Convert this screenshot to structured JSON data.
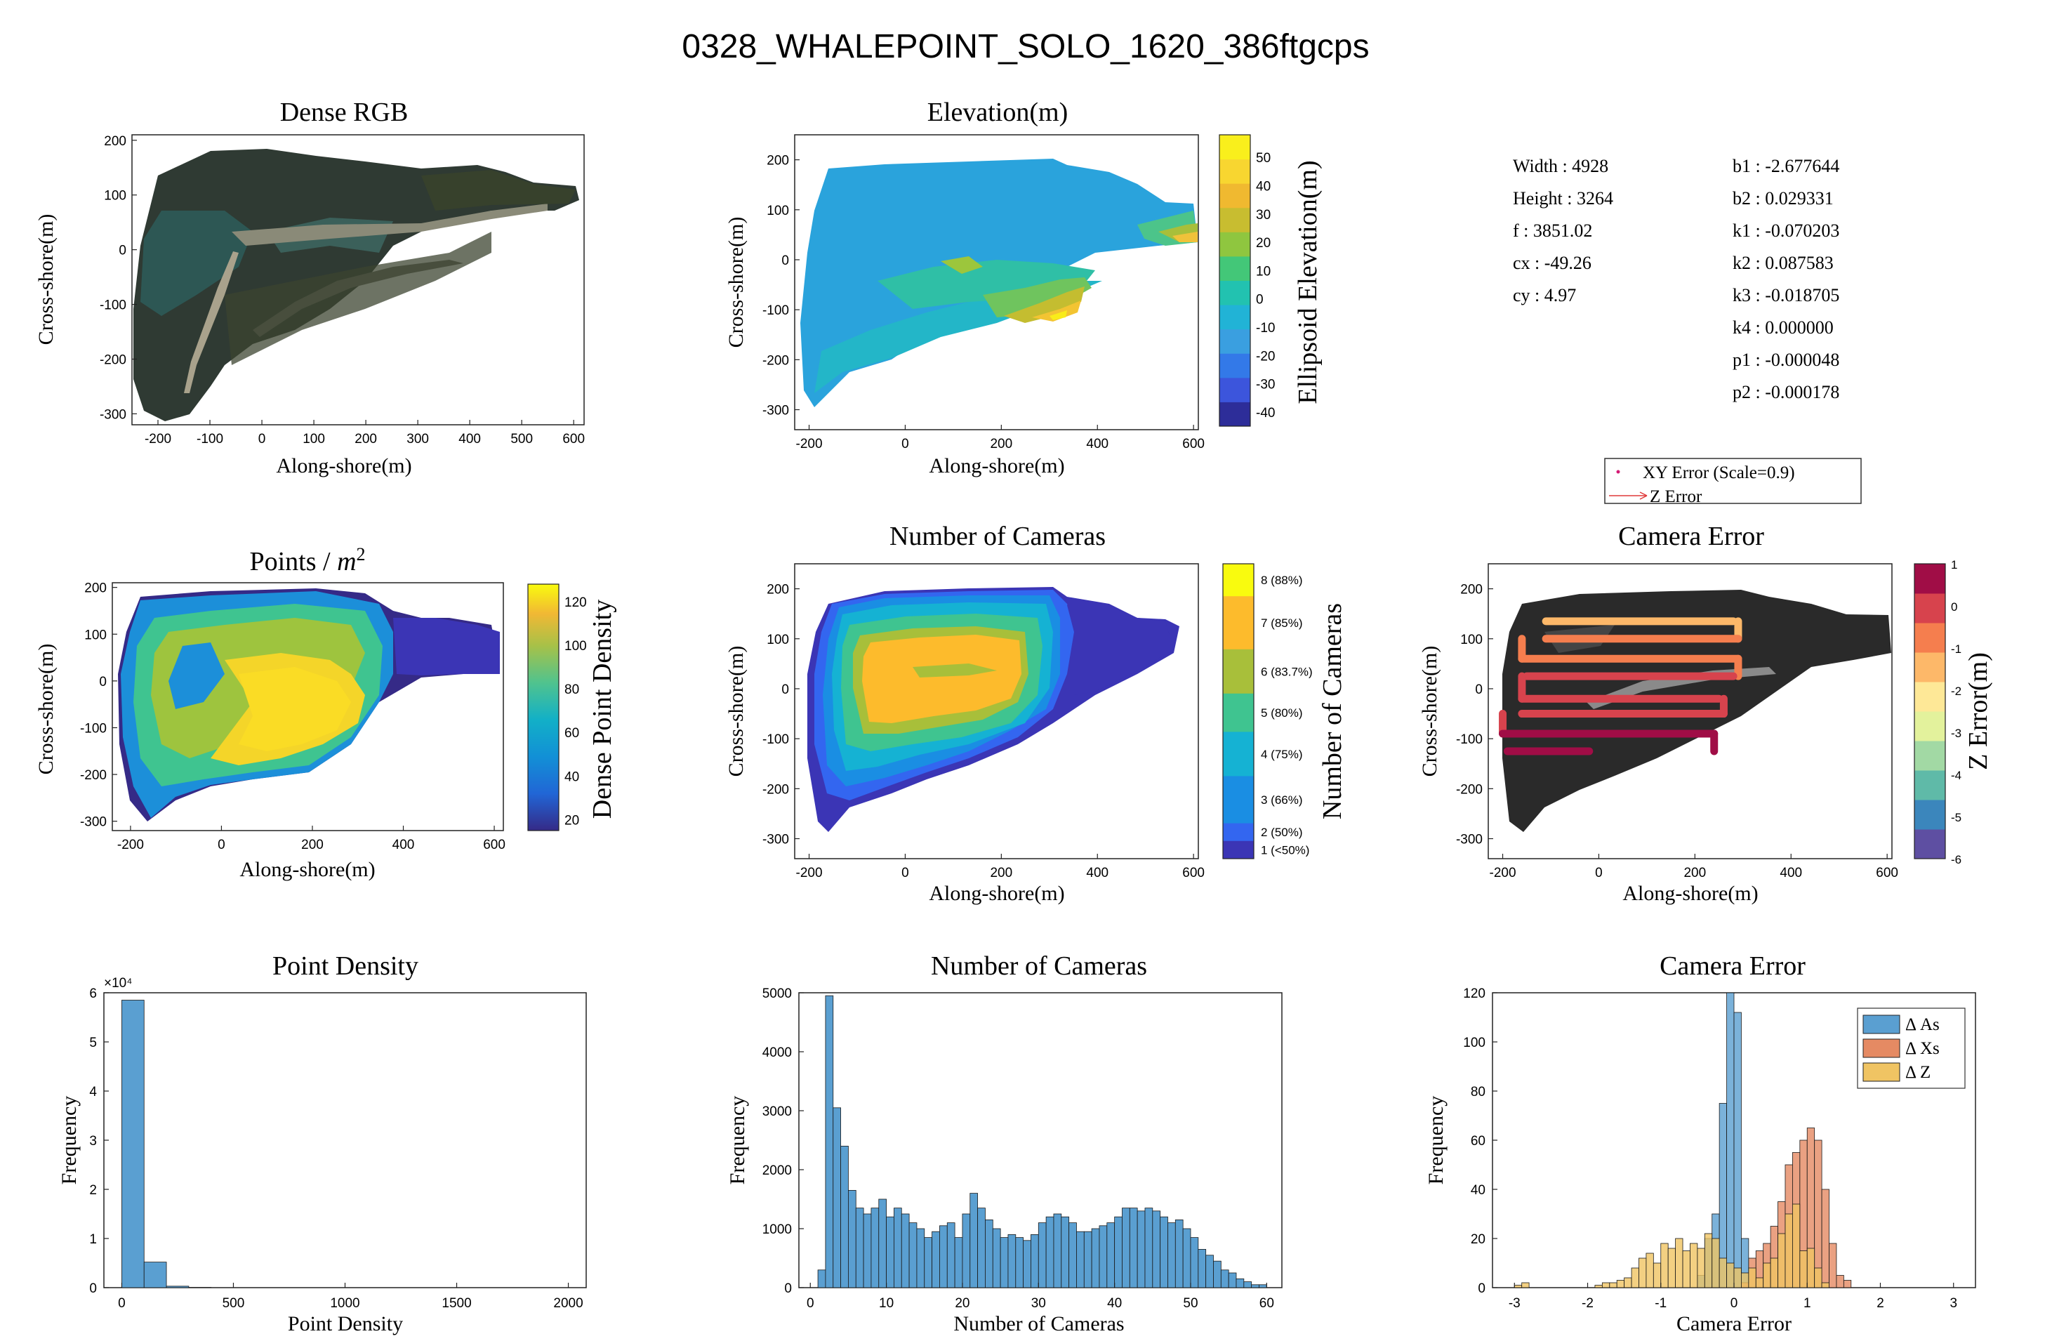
{
  "figure": {
    "title": "0328_WHALEPOINT_SOLO_1620_386ftgcps"
  },
  "camera_params": {
    "left": [
      {
        "key": "Width",
        "value": "4928"
      },
      {
        "key": "Height",
        "value": "3264"
      },
      {
        "key": "f",
        "value": "3851.02"
      },
      {
        "key": "cx",
        "value": "-49.26"
      },
      {
        "key": "cy",
        "value": "4.97"
      }
    ],
    "right": [
      {
        "key": "b1",
        "value": "-2.677644"
      },
      {
        "key": "b2",
        "value": "0.029331"
      },
      {
        "key": "k1",
        "value": "-0.070203"
      },
      {
        "key": "k2",
        "value": "0.087583"
      },
      {
        "key": "k3",
        "value": "-0.018705"
      },
      {
        "key": "k4",
        "value": "0.000000"
      },
      {
        "key": "p1",
        "value": "-0.000048"
      },
      {
        "key": "p2",
        "value": "-0.000178"
      }
    ]
  },
  "quiver_legend": {
    "xy_label": "XY Error (Scale=0.9)",
    "z_label": "Z Error"
  },
  "colors": {
    "hist_blue": "#5a9fd1",
    "hist_orange": "#e58a63",
    "hist_yellow": "#f0c463",
    "parula_low": "#352a87",
    "parula_high": "#f9fb0e"
  },
  "chart_data": [
    {
      "id": "dense-rgb",
      "type": "heatmap",
      "title": "Dense RGB",
      "xlabel": "Along-shore(m)",
      "ylabel": "Cross-shore(m)",
      "xlim": [
        -250,
        620
      ],
      "ylim": [
        -320,
        210
      ],
      "xticks": [
        -200,
        -100,
        0,
        100,
        200,
        300,
        400,
        500,
        600
      ],
      "yticks": [
        200,
        100,
        0,
        -100,
        -200,
        -300
      ],
      "image": "orthomosaic (RGB imagery)"
    },
    {
      "id": "elevation",
      "type": "heatmap",
      "title": "Elevation(m)",
      "xlabel": "Along-shore(m)",
      "ylabel": "Cross-shore(m)",
      "xlim": [
        -230,
        610
      ],
      "ylim": [
        -340,
        250
      ],
      "xticks": [
        -200,
        0,
        200,
        400,
        600
      ],
      "yticks": [
        200,
        100,
        0,
        -100,
        -200,
        -300
      ],
      "colorbar": {
        "label": "Ellipsoid Elevation(m)",
        "range": [
          -45,
          58
        ],
        "ticks": [
          50,
          40,
          30,
          20,
          10,
          0,
          -10,
          -20,
          -30,
          -40
        ],
        "levels": [
          "#2d2d99",
          "#3c55dc",
          "#3379e8",
          "#3a9fe0",
          "#21b3d6",
          "#22c2b0",
          "#43c778",
          "#8fc63f",
          "#c8bd30",
          "#f0b930",
          "#f8d630",
          "#f9ef1c"
        ]
      }
    },
    {
      "id": "points-density-map",
      "type": "heatmap",
      "title": "Points / m²",
      "xlabel": "Along-shore(m)",
      "ylabel": "Cross-shore(m)",
      "xlim": [
        -240,
        620
      ],
      "ylim": [
        -320,
        210
      ],
      "xticks": [
        -200,
        0,
        200,
        400,
        600
      ],
      "yticks": [
        200,
        100,
        0,
        -100,
        -200,
        -300
      ],
      "colorbar": {
        "label": "Dense Point Density",
        "range": [
          15,
          128
        ],
        "ticks": [
          120,
          100,
          80,
          60,
          40,
          20
        ]
      }
    },
    {
      "id": "num-cameras-map",
      "type": "heatmap",
      "title": "Number of Cameras",
      "xlabel": "Along-shore(m)",
      "ylabel": "Cross-shore(m)",
      "xlim": [
        -230,
        610
      ],
      "ylim": [
        -340,
        250
      ],
      "xticks": [
        -200,
        0,
        200,
        400,
        600
      ],
      "yticks": [
        200,
        100,
        0,
        -100,
        -200,
        -300
      ],
      "colorbar": {
        "label": "Number of Cameras",
        "classes": [
          {
            "label": "8 (88%)",
            "color": "#f9fb0e"
          },
          {
            "label": "7 (85%)",
            "color": "#fdbb2c"
          },
          {
            "label": "6 (83.7%)",
            "color": "#a8bf3a"
          },
          {
            "label": "5 (80%)",
            "color": "#3fc490"
          },
          {
            "label": "4 (75%)",
            "color": "#15b2d3"
          },
          {
            "label": "3 (66%)",
            "color": "#1a8ee3"
          },
          {
            "label": "2 (50%)",
            "color": "#3366f0"
          },
          {
            "label": "1 (<50%)",
            "color": "#3b35b5"
          }
        ]
      }
    },
    {
      "id": "camera-error-map",
      "type": "scatter",
      "title": "Camera Error",
      "xlabel": "Along-shore(m)",
      "ylabel": "Cross-shore(m)",
      "xlim": [
        -230,
        610
      ],
      "ylim": [
        -340,
        250
      ],
      "xticks": [
        -200,
        0,
        200,
        400,
        600
      ],
      "yticks": [
        200,
        100,
        0,
        -100,
        -200,
        -300
      ],
      "flight_lines": [
        {
          "y": 135,
          "x": [
            -110,
            280
          ],
          "z": -1.2
        },
        {
          "y": 100,
          "x": [
            -110,
            290
          ],
          "z": -0.6
        },
        {
          "y": 60,
          "x": [
            -160,
            290
          ],
          "z": -0.8
        },
        {
          "y": 25,
          "x": [
            -150,
            280
          ],
          "z": -0.3
        },
        {
          "y": -20,
          "x": [
            -160,
            250
          ],
          "z": 0.0
        },
        {
          "y": -50,
          "x": [
            -160,
            260
          ],
          "z": 0.2
        },
        {
          "y": -90,
          "x": [
            -200,
            240
          ],
          "z": 0.6
        },
        {
          "y": -125,
          "x": [
            -190,
            -20
          ],
          "z": 0.8
        }
      ],
      "colorbar": {
        "label": "Z Error(m)",
        "range": [
          -6,
          1
        ],
        "ticks": [
          1,
          0,
          -1,
          -2,
          -3,
          -4,
          -5,
          -6
        ],
        "colors": [
          "#5e4fa2",
          "#3b86bc",
          "#5fbaa8",
          "#a2d9a4",
          "#e3f29c",
          "#fee897",
          "#fdb869",
          "#f57e4e",
          "#d7434d",
          "#a00d46"
        ]
      }
    },
    {
      "id": "point-density-hist",
      "type": "bar",
      "title": "Point Density",
      "xlabel": "Point Density",
      "ylabel": "Frequency",
      "bin_width": 100,
      "bin_starts": [
        0,
        100,
        200,
        300
      ],
      "values": [
        58500,
        5200,
        300,
        50
      ],
      "xlim": [
        -80,
        2080
      ],
      "xticks": [
        0,
        500,
        1000,
        1500,
        2000
      ],
      "ylim": [
        0,
        60000
      ],
      "yticks": [
        0,
        1,
        2,
        3,
        4,
        5,
        6
      ],
      "y_multiplier": "×10⁴"
    },
    {
      "id": "num-cameras-hist",
      "type": "bar",
      "title": "Number of Cameras",
      "xlabel": "Number of Cameras",
      "ylabel": "Frequency",
      "bin_width": 1,
      "bin_starts": [
        1,
        2,
        3,
        4,
        5,
        6,
        7,
        8,
        9,
        10,
        11,
        12,
        13,
        14,
        15,
        16,
        17,
        18,
        19,
        20,
        21,
        22,
        23,
        24,
        25,
        26,
        27,
        28,
        29,
        30,
        31,
        32,
        33,
        34,
        35,
        36,
        37,
        38,
        39,
        40,
        41,
        42,
        43,
        44,
        45,
        46,
        47,
        48,
        49,
        50,
        51,
        52,
        53,
        54,
        55,
        56,
        57,
        58,
        59
      ],
      "values": [
        300,
        4950,
        3050,
        2400,
        1650,
        1350,
        1250,
        1350,
        1500,
        1200,
        1350,
        1250,
        1100,
        1000,
        850,
        950,
        1050,
        1100,
        850,
        1250,
        1600,
        1350,
        1150,
        1000,
        850,
        900,
        850,
        800,
        900,
        1100,
        1200,
        1250,
        1200,
        1100,
        950,
        950,
        1000,
        1050,
        1100,
        1200,
        1350,
        1350,
        1300,
        1350,
        1300,
        1200,
        1100,
        1150,
        1000,
        850,
        650,
        550,
        450,
        300,
        250,
        150,
        100,
        50,
        50
      ],
      "xlim": [
        -1.5,
        62
      ],
      "xticks": [
        0,
        10,
        20,
        30,
        40,
        50,
        60
      ],
      "ylim": [
        0,
        5000
      ],
      "yticks": [
        0,
        1000,
        2000,
        3000,
        4000,
        5000
      ]
    },
    {
      "id": "camera-error-hist",
      "type": "bar",
      "title": "Camera Error",
      "xlabel": "Camera Error",
      "ylabel": "Frequency",
      "xlim": [
        -3.3,
        3.3
      ],
      "xticks": [
        -3,
        -2,
        -1,
        0,
        1,
        2,
        3
      ],
      "ylim": [
        0,
        120
      ],
      "yticks": [
        0,
        20,
        40,
        60,
        80,
        100,
        120
      ],
      "legend": "top-right",
      "series": [
        {
          "name": "Δ As",
          "color": "#5a9fd1",
          "bin_starts": [
            -0.5,
            -0.4,
            -0.3,
            -0.2,
            -0.1,
            0.0,
            0.1
          ],
          "bin_width": 0.1,
          "values": [
            5,
            20,
            30,
            75,
            120,
            112,
            20
          ]
        },
        {
          "name": "Δ Xs",
          "color": "#e58a63",
          "bin_starts": [
            0.1,
            0.2,
            0.3,
            0.4,
            0.5,
            0.6,
            0.7,
            0.8,
            0.9,
            1.0,
            1.1,
            1.2,
            1.3,
            1.4,
            1.5
          ],
          "bin_width": 0.1,
          "values": [
            2,
            12,
            15,
            18,
            25,
            35,
            50,
            55,
            60,
            65,
            60,
            40,
            18,
            5,
            3
          ],
          "marker_note": "bars drawn"
        },
        {
          "name": "Δ Z",
          "color": "#f0c463",
          "bin_starts": [
            -3.0,
            -2.9,
            -2.8,
            -2.7,
            -2.6,
            -2.5,
            -2.4,
            -2.3,
            -2.2,
            -2.1,
            -2.0,
            -1.9,
            -1.8,
            -1.7,
            -1.6,
            -1.5,
            -1.4,
            -1.3,
            -1.2,
            -1.1,
            -1.0,
            -0.9,
            -0.8,
            -0.7,
            -0.6,
            -0.5,
            -0.4,
            -0.3,
            -0.2,
            -0.1,
            0.0,
            0.1,
            0.2,
            0.3,
            0.4,
            0.5,
            0.6,
            0.7,
            0.8,
            0.9,
            1.0,
            1.1,
            1.2
          ],
          "bin_width": 0.1,
          "values": [
            1,
            2,
            0,
            0,
            0,
            0,
            0,
            0,
            0,
            0,
            0,
            1,
            2,
            2,
            3,
            4,
            8,
            12,
            14,
            10,
            18,
            16,
            20,
            15,
            18,
            16,
            22,
            20,
            12,
            10,
            8,
            6,
            8,
            4,
            10,
            12,
            22,
            30,
            34,
            15,
            16,
            8,
            2
          ]
        }
      ]
    }
  ]
}
